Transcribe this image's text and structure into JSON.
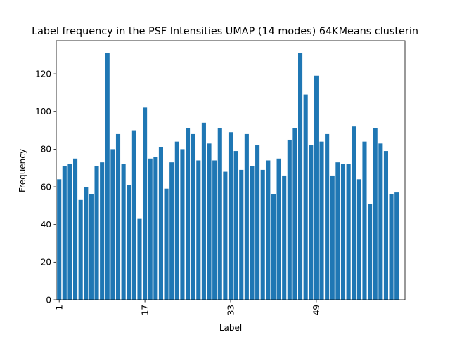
{
  "chart_data": {
    "type": "bar",
    "title": "Label frequency in the PSF Intensities UMAP (14 modes) 64KMeans clusterin",
    "xlabel": "Label",
    "ylabel": "Frequency",
    "x": [
      1,
      2,
      3,
      4,
      5,
      6,
      7,
      8,
      9,
      10,
      11,
      12,
      13,
      14,
      15,
      16,
      17,
      18,
      19,
      20,
      21,
      22,
      23,
      24,
      25,
      26,
      27,
      28,
      29,
      30,
      31,
      32,
      33,
      34,
      35,
      36,
      37,
      38,
      39,
      40,
      41,
      42,
      43,
      44,
      45,
      46,
      47,
      48,
      49,
      50,
      51,
      52,
      53,
      54,
      55,
      56,
      57,
      58,
      59,
      60,
      61,
      62,
      63,
      64
    ],
    "values": [
      64,
      71,
      72,
      75,
      53,
      60,
      56,
      71,
      73,
      131,
      80,
      88,
      72,
      61,
      90,
      43,
      102,
      75,
      76,
      81,
      59,
      73,
      84,
      80,
      91,
      88,
      74,
      94,
      83,
      74,
      91,
      68,
      89,
      79,
      69,
      88,
      71,
      82,
      69,
      74,
      56,
      75,
      66,
      85,
      91,
      131,
      109,
      82,
      119,
      84,
      88,
      66,
      73,
      72,
      72,
      92,
      64,
      84,
      51,
      91,
      83,
      79,
      56,
      57
    ],
    "xticks": [
      1,
      17,
      33,
      49
    ],
    "xtick_labels": [
      "1",
      "17",
      "33",
      "49"
    ],
    "yticks": [
      0,
      20,
      40,
      60,
      80,
      100,
      120
    ],
    "ytick_labels": [
      "0",
      "20",
      "40",
      "60",
      "80",
      "100",
      "120"
    ],
    "ylim": [
      0,
      137.55
    ],
    "xlim": [
      -0.55,
      64.55
    ],
    "bar_color": "#1f77b4",
    "grid": false,
    "legend": "none"
  }
}
